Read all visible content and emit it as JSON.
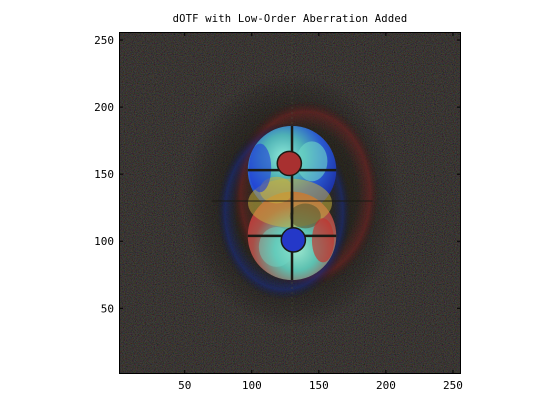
{
  "chart_data": {
    "type": "heatmap",
    "title": "dOTF with Low-Order Aberration Added",
    "xlabel": "",
    "ylabel": "",
    "xlim": [
      1,
      256
    ],
    "ylim": [
      1,
      256
    ],
    "x_ticks": [
      50,
      100,
      150,
      200,
      250
    ],
    "y_ticks": [
      50,
      100,
      150,
      200,
      250
    ],
    "x_tick_labels": [
      "50",
      "100",
      "150",
      "200",
      "250"
    ],
    "y_tick_labels": [
      "50",
      "100",
      "150",
      "200",
      "250"
    ],
    "grid": false,
    "background_color": "#070605",
    "features": {
      "center": [
        130,
        130
      ],
      "upper_lobe_center": [
        130,
        153
      ],
      "lower_lobe_center": [
        130,
        104
      ],
      "lobe_radius": 33,
      "upper_dot_center": [
        128,
        158
      ],
      "lower_dot_center": [
        131,
        101
      ],
      "dot_radius": 9
    },
    "colors": {
      "cyan": "#6fd9c8",
      "blue": "#1f3cd8",
      "red": "#c6302a",
      "yellow": "#c4b040",
      "olive": "#5a5a30"
    }
  }
}
